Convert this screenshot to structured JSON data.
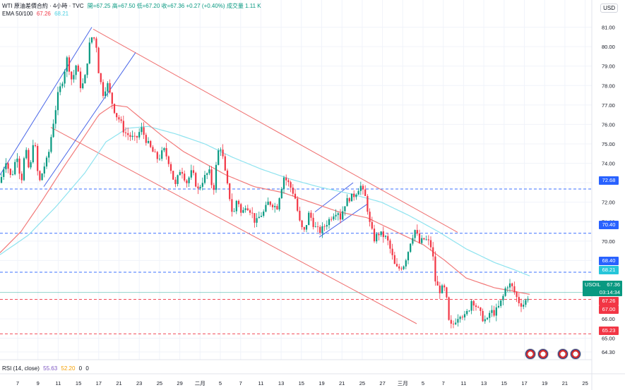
{
  "legend": {
    "symbol": "WTI 原油差價合約 · 4小時 · TVC",
    "ohlc": "開=67.25  高=67.50  低=67.20  收=67.36  +0.27 (+0.40%)  成交量 1.11 K",
    "ema_label": "EMA 50/100",
    "ema_fast": "67.26",
    "ema_slow": "68.21"
  },
  "rsi_legend": {
    "label": "RSI (14, close)",
    "v1": "55.63",
    "v2": "52.20",
    "v3": "0",
    "v4": "0"
  },
  "currency": "USD",
  "colors": {
    "up": "#089981",
    "down": "#f23645",
    "ema_fast": "#f27a7a",
    "ema_slow": "#8ee3ef",
    "channel_red": "#ef6e6e",
    "channel_blue": "#4a67e8",
    "level_blue": "#2962ff",
    "level_red": "#f23645"
  },
  "badges": {
    "price_symbol": "USOIL",
    "price": "67.36",
    "countdown": "03:14:34",
    "b7268": "72.68",
    "b7040": "70.40",
    "b6840": "68.40",
    "b6821": "68.21",
    "b6726": "67.26",
    "b6700": "67.00",
    "b6523": "65.23"
  },
  "chart_data": {
    "type": "candlestick",
    "y_axis": {
      "ylim": [
        63.9,
        82.4
      ],
      "ticks": [
        "81.00",
        "80.00",
        "79.00",
        "78.00",
        "77.00",
        "76.00",
        "75.00",
        "74.00",
        "73.00",
        "72.00",
        "71.00",
        "70.00",
        "69.00",
        "66.00",
        "65.00",
        "64.30"
      ]
    },
    "x_axis": {
      "ticks": [
        "7",
        "9",
        "11",
        "15",
        "17",
        "21",
        "23",
        "25",
        "29",
        "二月",
        "5",
        "7",
        "11",
        "13",
        "15",
        "19",
        "21",
        "25",
        "27",
        "三月",
        "5",
        "7",
        "11",
        "13",
        "15",
        "17",
        "19",
        "21",
        "25"
      ]
    },
    "horizontal_levels": [
      {
        "value": 72.68,
        "style": "dashed",
        "color": "blue"
      },
      {
        "value": 70.4,
        "style": "dashed",
        "color": "blue"
      },
      {
        "value": 68.4,
        "style": "dashed",
        "color": "blue"
      },
      {
        "value": 67.36,
        "style": "solid",
        "color": "teal"
      },
      {
        "value": 67.0,
        "style": "dashed",
        "color": "red"
      },
      {
        "value": 65.23,
        "style": "dashed",
        "color": "red"
      }
    ],
    "close_path_anchors": [
      [
        0,
        73.0
      ],
      [
        8,
        74.2
      ],
      [
        16,
        73.2
      ],
      [
        24,
        74.5
      ],
      [
        30,
        73.0
      ],
      [
        36,
        74.8
      ],
      [
        42,
        73.4
      ],
      [
        48,
        75.5
      ],
      [
        55,
        72.9
      ],
      [
        62,
        73.8
      ],
      [
        68,
        74.3
      ],
      [
        75,
        76.0
      ],
      [
        82,
        77.5
      ],
      [
        88,
        78.2
      ],
      [
        95,
        79.4
      ],
      [
        102,
        78.2
      ],
      [
        108,
        79.1
      ],
      [
        115,
        77.8
      ],
      [
        121,
        78.5
      ],
      [
        126,
        80.0
      ],
      [
        131,
        80.6
      ],
      [
        136,
        80.2
      ],
      [
        140,
        78.6
      ],
      [
        146,
        77.6
      ],
      [
        152,
        78.1
      ],
      [
        158,
        77.2
      ],
      [
        164,
        76.5
      ],
      [
        170,
        76.2
      ],
      [
        176,
        75.6
      ],
      [
        184,
        75.4
      ],
      [
        192,
        75.2
      ],
      [
        200,
        75.8
      ],
      [
        208,
        75.1
      ],
      [
        216,
        74.6
      ],
      [
        224,
        74.2
      ],
      [
        232,
        74.7
      ],
      [
        240,
        74.0
      ],
      [
        248,
        72.8
      ],
      [
        256,
        73.8
      ],
      [
        264,
        73.0
      ],
      [
        272,
        73.6
      ],
      [
        280,
        72.6
      ],
      [
        288,
        73.2
      ],
      [
        296,
        73.6
      ],
      [
        302,
        72.5
      ],
      [
        308,
        74.5
      ],
      [
        312,
        74.9
      ],
      [
        316,
        74.2
      ],
      [
        320,
        73.2
      ],
      [
        326,
        72.1
      ],
      [
        330,
        71.2
      ],
      [
        336,
        72.3
      ],
      [
        342,
        71.3
      ],
      [
        348,
        71.9
      ],
      [
        356,
        71.5
      ],
      [
        362,
        70.9
      ],
      [
        368,
        71.3
      ],
      [
        374,
        71.5
      ],
      [
        380,
        72.0
      ],
      [
        386,
        71.9
      ],
      [
        392,
        71.7
      ],
      [
        396,
        72.4
      ],
      [
        402,
        73.3
      ],
      [
        408,
        73.0
      ],
      [
        414,
        72.6
      ],
      [
        418,
        72.2
      ],
      [
        424,
        71.0
      ],
      [
        430,
        70.4
      ],
      [
        434,
        70.9
      ],
      [
        438,
        71.5
      ],
      [
        442,
        71.0
      ],
      [
        448,
        70.6
      ],
      [
        454,
        70.5
      ],
      [
        460,
        70.8
      ],
      [
        466,
        71.1
      ],
      [
        472,
        71.4
      ],
      [
        478,
        71.6
      ],
      [
        482,
        71.2
      ],
      [
        488,
        71.9
      ],
      [
        494,
        72.2
      ],
      [
        500,
        72.3
      ],
      [
        506,
        72.6
      ],
      [
        510,
        72.9
      ],
      [
        514,
        72.5
      ],
      [
        518,
        72.2
      ],
      [
        524,
        70.8
      ],
      [
        530,
        70.1
      ],
      [
        536,
        70.4
      ],
      [
        542,
        70.3
      ],
      [
        548,
        70.1
      ],
      [
        554,
        69.4
      ],
      [
        560,
        68.6
      ],
      [
        566,
        68.6
      ],
      [
        572,
        68.8
      ],
      [
        578,
        69.5
      ],
      [
        582,
        70.1
      ],
      [
        588,
        70.6
      ],
      [
        594,
        69.9
      ],
      [
        600,
        70.1
      ],
      [
        606,
        70.0
      ],
      [
        612,
        69.6
      ],
      [
        616,
        68.0
      ],
      [
        620,
        67.6
      ],
      [
        624,
        67.4
      ],
      [
        628,
        67.7
      ],
      [
        632,
        67.1
      ],
      [
        636,
        65.7
      ],
      [
        640,
        65.6
      ],
      [
        646,
        66.0
      ],
      [
        652,
        66.3
      ],
      [
        658,
        66.1
      ],
      [
        664,
        66.5
      ],
      [
        668,
        67.0
      ],
      [
        672,
        66.8
      ],
      [
        678,
        66.4
      ],
      [
        684,
        66.0
      ],
      [
        690,
        65.9
      ],
      [
        694,
        66.4
      ],
      [
        700,
        66.3
      ],
      [
        706,
        66.6
      ],
      [
        712,
        67.1
      ],
      [
        716,
        67.6
      ],
      [
        720,
        67.8
      ],
      [
        724,
        67.7
      ],
      [
        728,
        67.4
      ],
      [
        734,
        66.9
      ],
      [
        740,
        66.7
      ],
      [
        746,
        67.0
      ],
      [
        750,
        67.36
      ]
    ],
    "ema_fast_path": [
      [
        0,
        69.4
      ],
      [
        30,
        70.5
      ],
      [
        60,
        72.1
      ],
      [
        90,
        73.8
      ],
      [
        118,
        75.3
      ],
      [
        140,
        76.5
      ],
      [
        160,
        77.0
      ],
      [
        180,
        76.9
      ],
      [
        200,
        76.3
      ],
      [
        230,
        75.4
      ],
      [
        260,
        74.6
      ],
      [
        290,
        74.0
      ],
      [
        320,
        73.4
      ],
      [
        360,
        72.8
      ],
      [
        400,
        72.5
      ],
      [
        440,
        72.0
      ],
      [
        480,
        71.5
      ],
      [
        520,
        71.2
      ],
      [
        560,
        70.5
      ],
      [
        600,
        69.8
      ],
      [
        630,
        69.0
      ],
      [
        660,
        68.1
      ],
      [
        700,
        67.6
      ],
      [
        730,
        67.4
      ],
      [
        750,
        67.26
      ]
    ],
    "ema_slow_path": [
      [
        0,
        69.3
      ],
      [
        40,
        70.3
      ],
      [
        80,
        71.8
      ],
      [
        120,
        73.5
      ],
      [
        150,
        75.1
      ],
      [
        180,
        75.8
      ],
      [
        210,
        75.9
      ],
      [
        250,
        75.5
      ],
      [
        290,
        75.0
      ],
      [
        330,
        74.3
      ],
      [
        370,
        73.7
      ],
      [
        410,
        73.2
      ],
      [
        450,
        72.8
      ],
      [
        500,
        72.4
      ],
      [
        540,
        72.0
      ],
      [
        580,
        71.3
      ],
      [
        620,
        70.5
      ],
      [
        660,
        69.6
      ],
      [
        700,
        68.9
      ],
      [
        730,
        68.5
      ],
      [
        750,
        68.21
      ]
    ],
    "channels": [
      {
        "name": "descending",
        "color": "red",
        "lines": [
          [
            [
              132,
              80.9
            ],
            [
              648,
              70.45
            ]
          ],
          [
            [
              72,
              75.85
            ],
            [
              590,
              65.75
            ]
          ]
        ]
      },
      {
        "name": "ascending",
        "color": "blue",
        "lines": [
          [
            [
              0,
              73.4
            ],
            [
              130,
              81.0
            ]
          ],
          [
            [
              62,
              72.8
            ],
            [
              192,
              79.7
            ]
          ]
        ]
      },
      {
        "name": "small-ascending",
        "color": "blue",
        "lines": [
          [
            [
              446,
              71.5
            ],
            [
              500,
              73.0
            ]
          ],
          [
            [
              452,
              70.2
            ],
            [
              520,
              71.9
            ]
          ]
        ]
      }
    ]
  }
}
